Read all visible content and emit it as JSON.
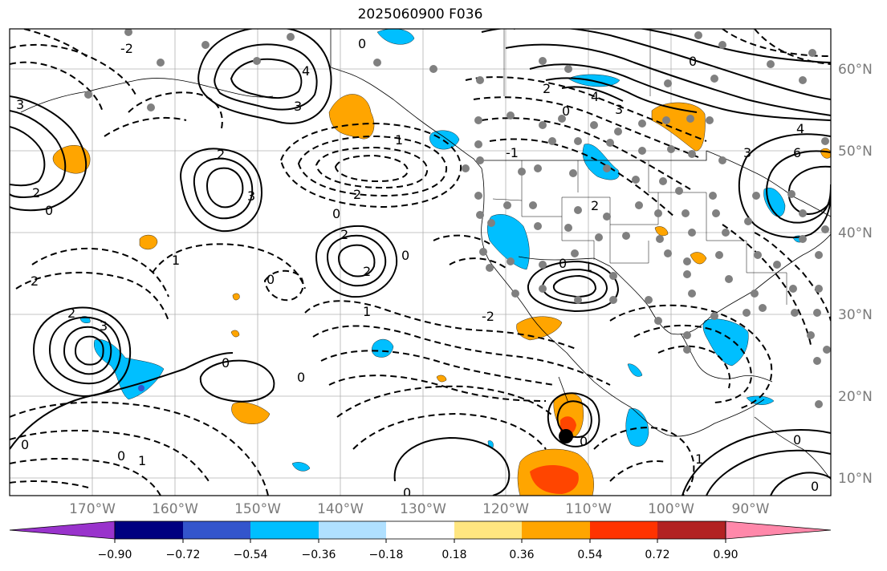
{
  "title": "2025060900 F036",
  "lat_labels": [
    "60°N",
    "50°N",
    "40°N",
    "30°N",
    "20°N",
    "10°N"
  ],
  "lon_labels": [
    "170°W",
    "160°W",
    "150°W",
    "140°W",
    "130°W",
    "120°W",
    "110°W",
    "100°W",
    "90°W"
  ],
  "colorbar": {
    "ticks": [
      "−0.90",
      "−0.72",
      "−0.54",
      "−0.36",
      "−0.18",
      "0.18",
      "0.36",
      "0.54",
      "0.72",
      "0.90"
    ],
    "colors": [
      "#9933cc",
      "#000080",
      "#3355cc",
      "#00bfff",
      "#b0e0ff",
      "#ffffff",
      "#ffe680",
      "#ffa500",
      "#ff3300",
      "#b22222",
      "#ff88aa"
    ]
  },
  "colors": {
    "positive_fill": "#ffa500",
    "strong_positive_fill": "#ff4500",
    "negative_fill": "#00bfff",
    "contour_line": "#000000",
    "station_dot": "#808080"
  },
  "contour_labels": [
    "0",
    "1",
    "2",
    "3",
    "4",
    "6",
    "-1",
    "-2"
  ]
}
